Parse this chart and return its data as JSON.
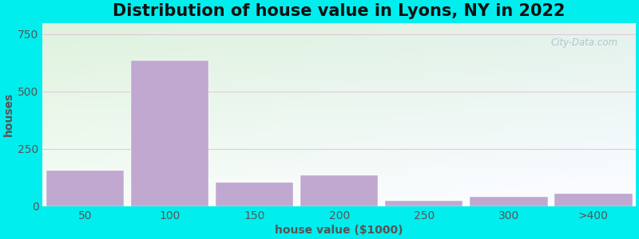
{
  "title": "Distribution of house value in Lyons, NY in 2022",
  "xlabel": "house value ($1000)",
  "ylabel": "houses",
  "categories": [
    "50",
    "100",
    "150",
    "200",
    "250",
    "300",
    ">400"
  ],
  "values": [
    155,
    635,
    105,
    135,
    25,
    40,
    55
  ],
  "bar_color": "#C0A8D0",
  "bar_edgecolor": "#FFFFFF",
  "ylim": [
    0,
    800
  ],
  "yticks": [
    0,
    250,
    500,
    750
  ],
  "bg_outer": "#00EEEE",
  "title_fontsize": 15,
  "axis_label_fontsize": 10,
  "tick_fontsize": 10,
  "bar_width": 0.92,
  "watermark": "City-Data.com"
}
